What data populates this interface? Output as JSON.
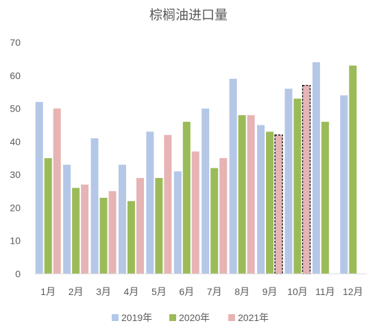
{
  "chart_data": {
    "type": "bar",
    "title": "棕榈油进口量",
    "xlabel": "",
    "ylabel": "",
    "categories": [
      "1月",
      "2月",
      "3月",
      "4月",
      "5月",
      "6月",
      "7月",
      "8月",
      "9月",
      "10月",
      "11月",
      "12月"
    ],
    "series": [
      {
        "name": "2019年",
        "color": "#B4C7E7",
        "values": [
          52,
          33,
          41,
          33,
          43,
          31,
          50,
          59,
          45,
          56,
          64,
          54
        ]
      },
      {
        "name": "2020年",
        "color": "#9BBB59",
        "values": [
          35,
          26,
          23,
          22,
          29,
          46,
          32,
          48,
          43,
          53,
          46,
          63
        ]
      },
      {
        "name": "2021年",
        "color": "#E6B4B4",
        "values": [
          50,
          27,
          25,
          29,
          42,
          37,
          35,
          48,
          42,
          57,
          null,
          null
        ]
      }
    ],
    "highlighted": [
      {
        "series": "2021年",
        "category": "9月",
        "style": "dashed-outline"
      },
      {
        "series": "2021年",
        "category": "10月",
        "style": "dashed-outline"
      }
    ],
    "ylim": [
      0,
      70
    ],
    "yticks": [
      0,
      10,
      20,
      30,
      40,
      50,
      60,
      70
    ],
    "grid": false,
    "legend": "bottom"
  }
}
